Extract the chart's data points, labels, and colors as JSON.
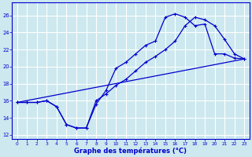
{
  "xlabel": "Graphe des températures (°C)",
  "bg_color": "#cde8ef",
  "grid_color": "#ffffff",
  "line_color": "#0000cc",
  "xlim": [
    -0.5,
    23.5
  ],
  "ylim": [
    11.5,
    27.5
  ],
  "xticks": [
    0,
    1,
    2,
    3,
    4,
    5,
    6,
    7,
    8,
    9,
    10,
    11,
    12,
    13,
    14,
    15,
    16,
    17,
    18,
    19,
    20,
    21,
    22,
    23
  ],
  "yticks": [
    12,
    14,
    16,
    18,
    20,
    22,
    24,
    26
  ],
  "line1_x": [
    0,
    1,
    2,
    3,
    4,
    5,
    6,
    7,
    8,
    9,
    10,
    11,
    12,
    13,
    14,
    15,
    16,
    17,
    18,
    19,
    20,
    21,
    22,
    23
  ],
  "line1_y": [
    15.8,
    15.8,
    15.8,
    16.0,
    15.3,
    13.2,
    12.8,
    12.8,
    15.6,
    17.2,
    19.8,
    20.5,
    21.5,
    22.5,
    23.0,
    25.8,
    26.2,
    25.8,
    24.8,
    25.0,
    21.5,
    21.5,
    21.0,
    20.9
  ],
  "line2_x": [
    0,
    1,
    2,
    3,
    4,
    5,
    6,
    7,
    8,
    9,
    10,
    11,
    12,
    13,
    14,
    15,
    16,
    17,
    18,
    19,
    20,
    21,
    22,
    23
  ],
  "line2_y": [
    15.8,
    15.8,
    15.8,
    16.0,
    15.3,
    13.2,
    12.8,
    12.8,
    16.0,
    16.8,
    17.8,
    18.5,
    19.5,
    20.5,
    21.2,
    22.0,
    23.0,
    24.8,
    25.8,
    25.5,
    24.8,
    23.2,
    21.5,
    20.9
  ],
  "line3_x": [
    0,
    23
  ],
  "line3_y": [
    15.8,
    20.9
  ]
}
